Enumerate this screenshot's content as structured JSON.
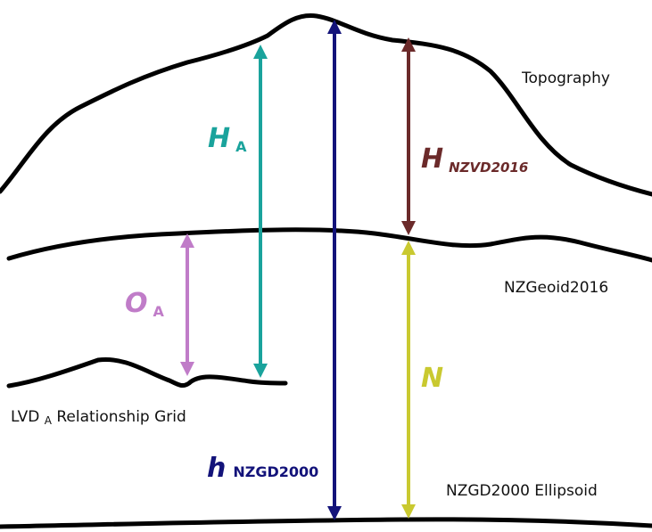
{
  "surfaces": [
    {
      "label": "Topography"
    },
    {
      "label": "NZGeoid2016"
    },
    {
      "label": "LVD",
      "subscript": "A",
      "suffix": "Relationship Grid"
    },
    {
      "label": "NZGD2000 Ellipsoid"
    }
  ],
  "arrows": [
    {
      "symbol": "H",
      "subscript": "A"
    },
    {
      "symbol": "H",
      "subscript": "NZVD2016"
    },
    {
      "symbol": "O",
      "subscript": "A"
    },
    {
      "symbol": "N"
    },
    {
      "symbol": "h",
      "subscript": "NZGD2000"
    }
  ]
}
